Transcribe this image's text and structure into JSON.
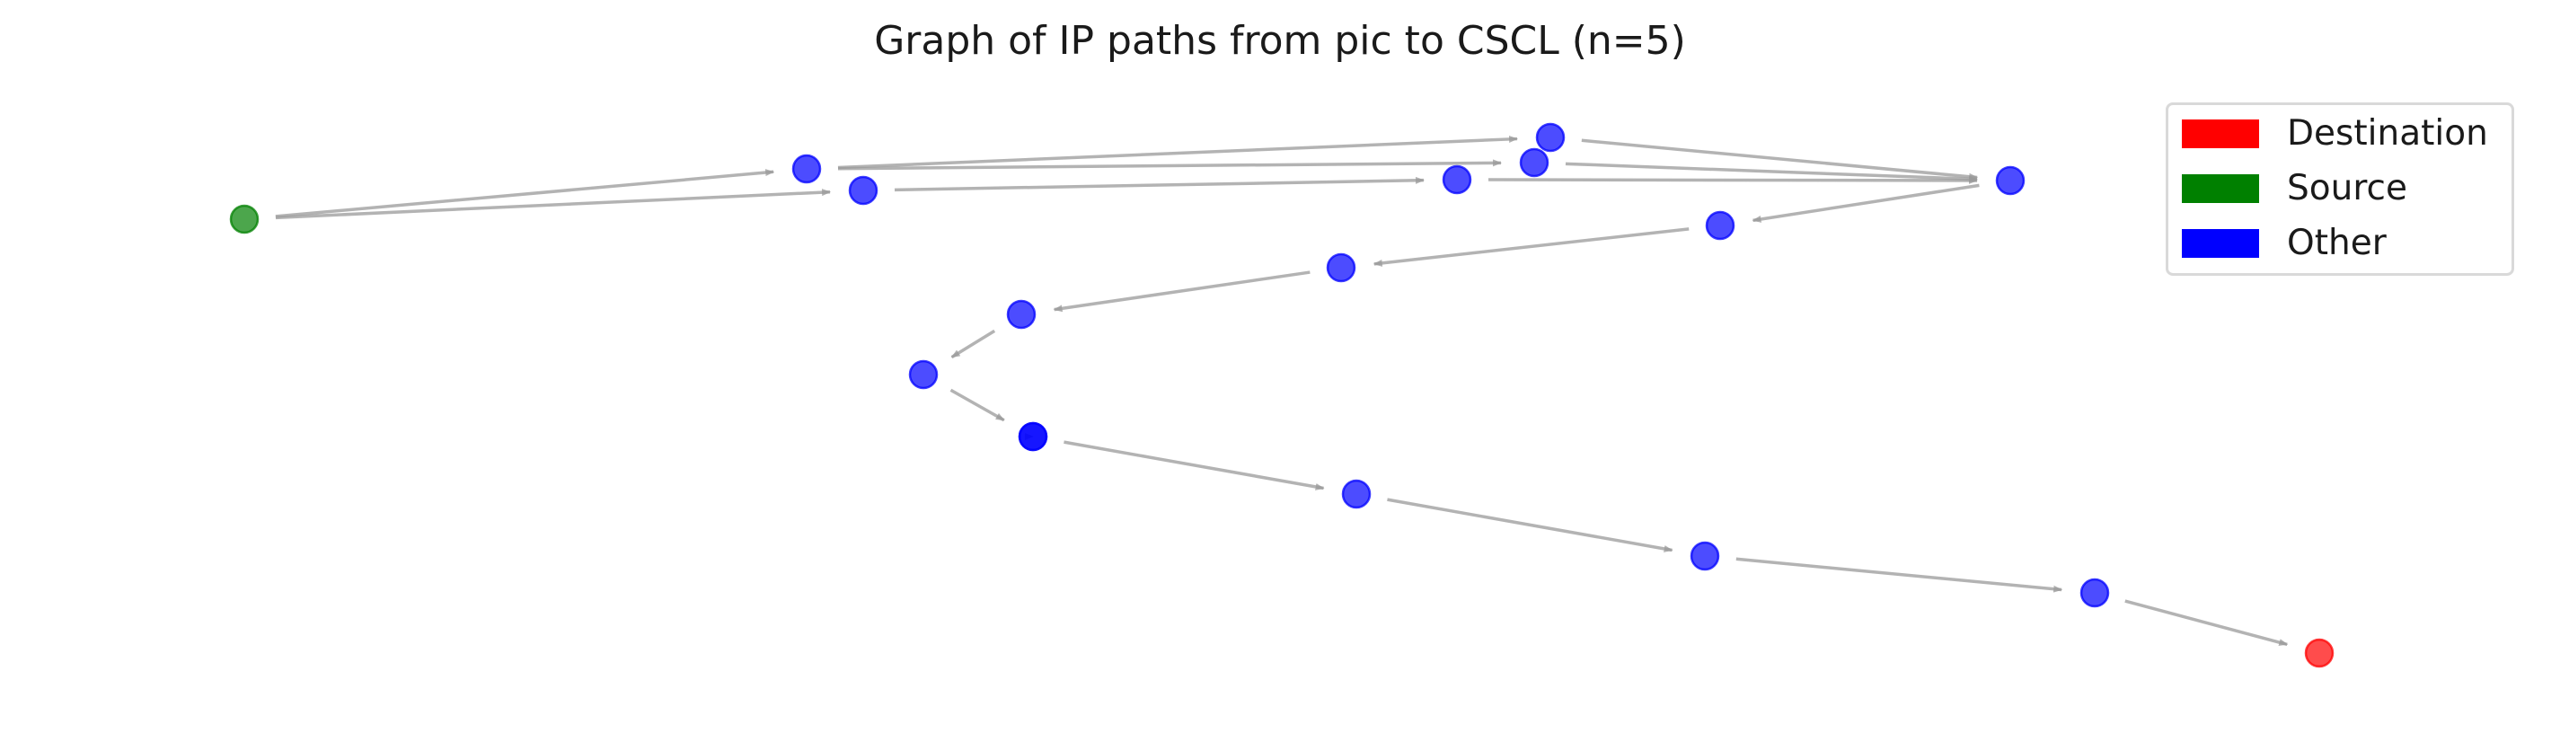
{
  "title": "Graph of IP paths from pic to CSCL (n=5)",
  "colors": {
    "destination": "#ff0000",
    "source": "#008000",
    "other": "#0000ff",
    "edge": "#999999"
  },
  "legend": [
    {
      "label": "Destination",
      "color": "#ff0000"
    },
    {
      "label": "Source",
      "color": "#008000"
    },
    {
      "label": "Other",
      "color": "#0000ff"
    }
  ],
  "graph": {
    "nodes": [
      {
        "id": "source",
        "role": "source"
      },
      {
        "id": "n1",
        "role": "other"
      },
      {
        "id": "n2",
        "role": "other"
      },
      {
        "id": "n3",
        "role": "other"
      },
      {
        "id": "n4",
        "role": "other"
      },
      {
        "id": "n5",
        "role": "other"
      },
      {
        "id": "n6",
        "role": "other"
      },
      {
        "id": "n7",
        "role": "other"
      },
      {
        "id": "n8",
        "role": "other"
      },
      {
        "id": "n9",
        "role": "other"
      },
      {
        "id": "n10",
        "role": "other"
      },
      {
        "id": "n11",
        "role": "other"
      },
      {
        "id": "n12",
        "role": "other"
      },
      {
        "id": "n13",
        "role": "other"
      },
      {
        "id": "n14",
        "role": "other"
      },
      {
        "id": "n15",
        "role": "other"
      },
      {
        "id": "n16",
        "role": "other"
      },
      {
        "id": "destination",
        "role": "destination"
      }
    ],
    "edges": [
      [
        "source",
        "n1"
      ],
      [
        "source",
        "n2"
      ],
      [
        "n1",
        "n3"
      ],
      [
        "n1",
        "n4"
      ],
      [
        "n2",
        "n5"
      ],
      [
        "n3",
        "n6"
      ],
      [
        "n4",
        "n6"
      ],
      [
        "n5",
        "n6"
      ],
      [
        "n6",
        "n7"
      ],
      [
        "n7",
        "n8"
      ],
      [
        "n8",
        "n9"
      ],
      [
        "n9",
        "n10"
      ],
      [
        "n10",
        "n11"
      ],
      [
        "n11",
        "n12"
      ],
      [
        "n12",
        "n13"
      ],
      [
        "n13",
        "n14"
      ],
      [
        "n14",
        "n15"
      ],
      [
        "n15",
        "destination"
      ]
    ]
  }
}
